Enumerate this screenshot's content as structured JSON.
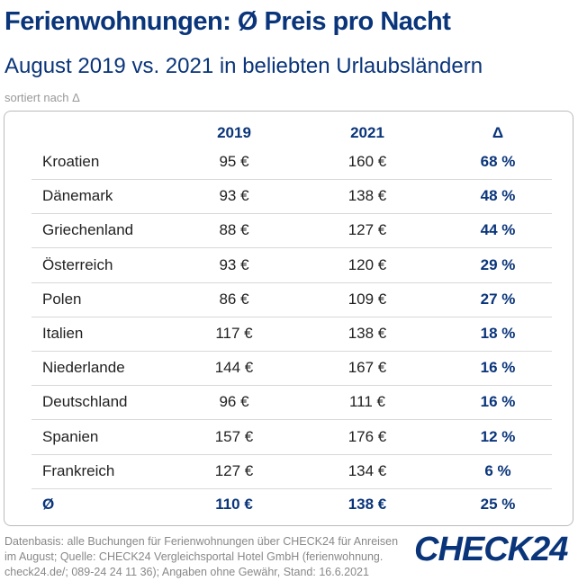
{
  "title": "Ferienwohnungen: Ø Preis pro Nacht",
  "subtitle": "August 2019 vs. 2021 in beliebten Urlaubsländern",
  "note": "sortiert nach Δ",
  "chart_data": {
    "type": "table",
    "columns": [
      "",
      "2019",
      "2021",
      "Δ"
    ],
    "rows": [
      [
        "Kroatien",
        "95 €",
        "160 €",
        "68 %"
      ],
      [
        "Dänemark",
        "93 €",
        "138 €",
        "48 %"
      ],
      [
        "Griechenland",
        "88 €",
        "127 €",
        "44 %"
      ],
      [
        "Österreich",
        "93 €",
        "120 €",
        "29 %"
      ],
      [
        "Polen",
        "86 €",
        "109 €",
        "27 %"
      ],
      [
        "Italien",
        "117 €",
        "138 €",
        "18 %"
      ],
      [
        "Niederlande",
        "144 €",
        "167 €",
        "16 %"
      ],
      [
        "Deutschland",
        "96 €",
        "111 €",
        "16 %"
      ],
      [
        "Spanien",
        "157 €",
        "176 €",
        "12 %"
      ],
      [
        "Frankreich",
        "127 €",
        "134 €",
        "6 %"
      ]
    ],
    "average": [
      "Ø",
      "110 €",
      "138 €",
      "25 %"
    ]
  },
  "footer": "Datenbasis: alle Buchungen für Ferienwohnungen über CHECK24 für Anreisen im August; Quelle: CHECK24 Vergleichsportal Hotel GmbH (ferienwohnung. check24.de/; 089-24 24 11 36); Angaben ohne Gewähr, Stand: 16.6.2021",
  "logo": "CHECK24",
  "colors": {
    "accent": "#0a357a"
  }
}
